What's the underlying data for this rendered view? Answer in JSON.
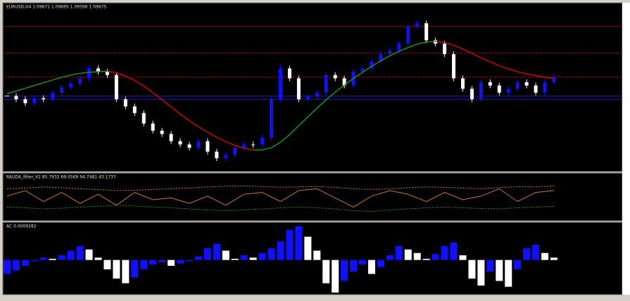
{
  "main": {
    "title": "EURUSD,H4  1.09671 1.09695 1.09596 1.09675",
    "ylim": [
      1.077,
      1.107
    ],
    "closes": [
      1.0906,
      1.09,
      1.0893,
      1.0902,
      1.09,
      1.0912,
      1.0922,
      1.0928,
      1.0938,
      1.0956,
      1.095,
      1.0944,
      1.09,
      1.0887,
      1.0875,
      1.0856,
      1.0843,
      1.0837,
      1.0824,
      1.0818,
      1.0812,
      1.0824,
      1.0805,
      1.0793,
      1.0799,
      1.0812,
      1.0818,
      1.0818,
      1.083,
      1.09,
      1.0956,
      1.0938,
      1.09,
      1.0906,
      1.0912,
      1.0944,
      1.0938,
      1.0925,
      1.095,
      1.0956,
      1.0969,
      1.0982,
      1.0988,
      1.1001,
      1.1032,
      1.1038,
      1.1007,
      1.1001,
      1.0982,
      1.0938,
      1.0919,
      1.09,
      1.0931,
      1.0925,
      1.0912,
      1.0919,
      1.0931,
      1.0925,
      1.0912,
      1.0931,
      1.094
    ],
    "ma": [
      1.091,
      1.0915,
      1.092,
      1.0925,
      1.093,
      1.0935,
      1.094,
      1.0944,
      1.0947,
      1.0949,
      1.095,
      1.0951,
      1.0948,
      1.0942,
      1.0934,
      1.0924,
      1.0912,
      1.0899,
      1.0886,
      1.0873,
      1.0861,
      1.085,
      1.084,
      1.0831,
      1.0823,
      1.0816,
      1.0811,
      1.0808,
      1.0808,
      1.0812,
      1.0822,
      1.0836,
      1.0852,
      1.0868,
      1.0884,
      1.0899,
      1.0913,
      1.0926,
      1.0938,
      1.0949,
      1.096,
      1.097,
      1.0979,
      1.0987,
      1.0994,
      1.1,
      1.1004,
      1.1005,
      1.1003,
      1.0998,
      1.0991,
      1.0983,
      1.0975,
      1.0968,
      1.0961,
      1.0955,
      1.095,
      1.0946,
      1.0943,
      1.094,
      1.0938
    ],
    "up_color": "#1010ff",
    "down_color": "#ffffff",
    "ma_up_color": "#1a9a1a",
    "ma_down_color": "#e00000",
    "levels": [
      {
        "value": 1.1032,
        "color": "#c00000",
        "dashed": false
      },
      {
        "value": 1.0984,
        "color": "#c00000",
        "dashed": true
      },
      {
        "value": 1.094,
        "color": "#c00000",
        "dashed": true
      },
      {
        "value": 1.0906,
        "color": "#2020e0",
        "dashed": false
      },
      {
        "value": 1.09,
        "color": "#2020e0",
        "dashed": false
      }
    ]
  },
  "osc": {
    "title": "RAUDA_filter_V2 85.7932 69.0569 94.7481 43.1737",
    "ylim": [
      0,
      100
    ],
    "line": [
      60,
      75,
      45,
      70,
      40,
      65,
      35,
      70,
      50,
      55,
      40,
      60,
      35,
      65,
      70,
      45,
      75,
      80,
      55,
      30,
      60,
      75,
      65,
      45,
      70,
      50,
      60,
      80,
      45,
      70,
      75
    ],
    "upper": [
      80,
      82,
      85,
      83,
      80,
      78,
      75,
      76,
      78,
      80,
      82,
      85,
      87,
      88,
      86,
      84,
      85,
      86,
      84,
      80,
      78,
      80,
      83,
      85,
      84,
      82,
      80,
      83,
      86,
      85,
      88
    ],
    "lower": [
      30,
      28,
      25,
      27,
      30,
      32,
      35,
      33,
      30,
      28,
      25,
      22,
      20,
      22,
      25,
      28,
      30,
      28,
      25,
      20,
      18,
      22,
      25,
      28,
      30,
      28,
      26,
      25,
      28,
      30,
      32
    ],
    "line_color": "#c87a2a",
    "upper_color": "#d08030",
    "lower_color": "#1a9a1a"
  },
  "ac": {
    "title": "AC 0.0009282",
    "ylim": [
      -0.0028,
      0.003
    ],
    "values": [
      -0.0012,
      -0.0009,
      -0.0005,
      -0.0001,
      0.0002,
      0.0001,
      0.0004,
      0.0008,
      0.0012,
      0.0009,
      0.0002,
      -0.0008,
      -0.0016,
      -0.002,
      -0.0015,
      -0.0008,
      -0.0004,
      -0.0002,
      -0.0005,
      -0.0003,
      -0.0001,
      0.0003,
      0.001,
      0.0014,
      0.0008,
      0.0001,
      0.0004,
      0.0002,
      0.0006,
      0.001,
      0.0016,
      0.0026,
      0.0029,
      0.002,
      0.0008,
      -0.002,
      -0.0028,
      -0.0018,
      -0.001,
      -0.0004,
      -0.0012,
      -0.0006,
      0.0004,
      0.0012,
      0.0009,
      0.0006,
      0.0001,
      0.0005,
      0.0012,
      0.0015,
      0.0004,
      -0.0016,
      -0.0022,
      -0.001,
      -0.0018,
      -0.0023,
      -0.0008,
      0.001,
      0.0013,
      0.0006,
      0.0002
    ],
    "up_color": "#1010ff",
    "down_color": "#ffffff"
  }
}
